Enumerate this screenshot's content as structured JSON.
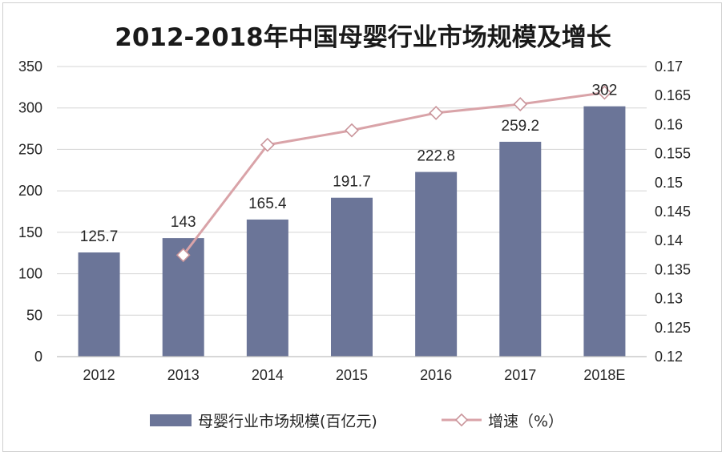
{
  "chart_data": {
    "type": "bar",
    "title": "2012-2018年中国母婴行业市场规模及增长",
    "categories": [
      "2012",
      "2013",
      "2014",
      "2015",
      "2016",
      "2017",
      "2018E"
    ],
    "series": [
      {
        "name": "母婴行业市场规模(百亿元)",
        "type": "bar",
        "axis": "left",
        "color": "#6b7598",
        "values": [
          125.7,
          143,
          165.4,
          191.7,
          222.8,
          259.2,
          302
        ],
        "labels": [
          "125.7",
          "143",
          "165.4",
          "191.7",
          "222.8",
          "259.2",
          "302"
        ]
      },
      {
        "name": "增速（%）",
        "type": "line",
        "axis": "right",
        "color": "#d9a3a8",
        "marker": "diamond",
        "values": [
          null,
          0.1375,
          0.1565,
          0.159,
          0.162,
          0.1635,
          0.1655
        ]
      }
    ],
    "y_left": {
      "range": [
        0,
        350
      ],
      "ticks": [
        "0",
        "50",
        "100",
        "150",
        "200",
        "250",
        "300",
        "350"
      ]
    },
    "y_right": {
      "range": [
        0.12,
        0.17
      ],
      "ticks": [
        "0.12",
        "0.125",
        "0.13",
        "0.135",
        "0.14",
        "0.145",
        "0.15",
        "0.155",
        "0.16",
        "0.165",
        "0.17"
      ]
    },
    "grid": true,
    "legend": "bottom"
  }
}
